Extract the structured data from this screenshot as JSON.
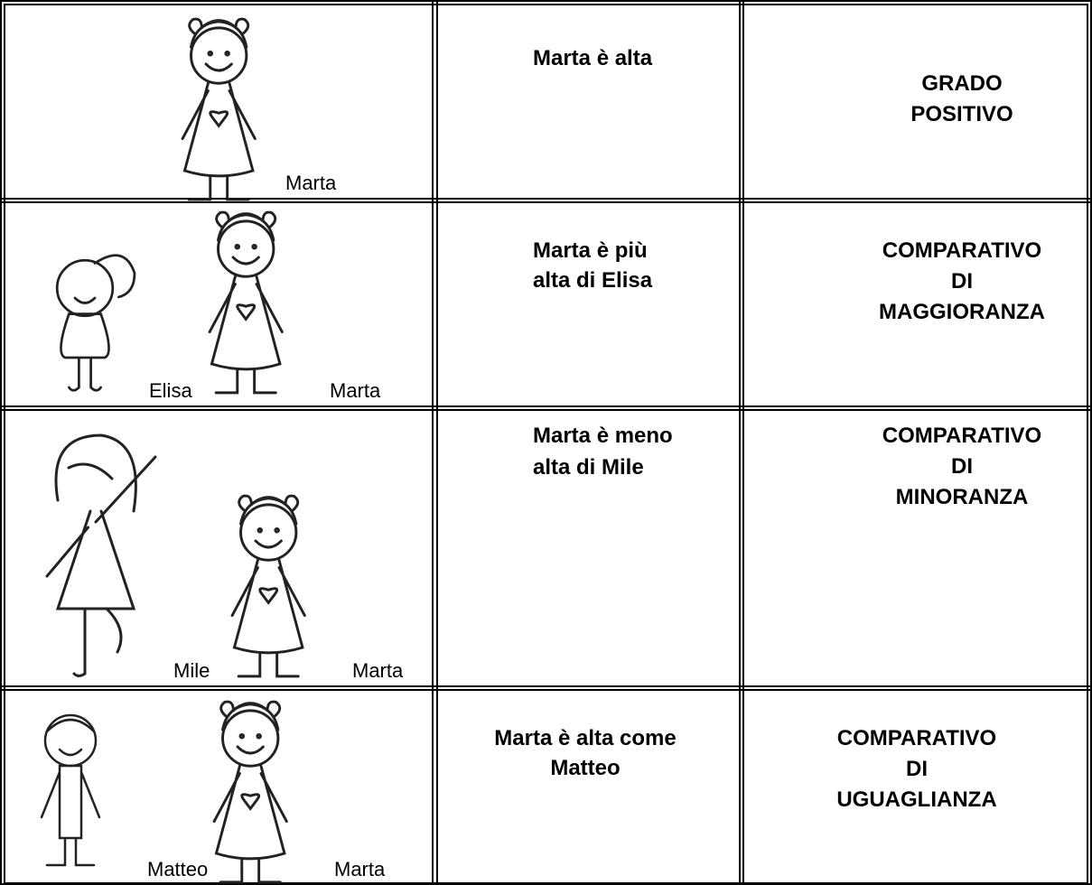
{
  "table": {
    "rows": [
      {
        "figures": [
          "Marta"
        ],
        "sentence": [
          "Marta è  alta"
        ],
        "degree": [
          "GRADO",
          "POSITIVO"
        ]
      },
      {
        "figures": [
          "Elisa",
          "Marta"
        ],
        "sentence": [
          "Marta è  più",
          "alta di Elisa"
        ],
        "degree": [
          "COMPARATIVO",
          "DI",
          "MAGGIORANZA"
        ]
      },
      {
        "figures": [
          "Mile",
          "Marta"
        ],
        "sentence": [
          "Marta è  meno",
          "alta di Mile"
        ],
        "degree": [
          "COMPARATIVO",
          "DI",
          "MINORANZA"
        ]
      },
      {
        "figures": [
          "Matteo",
          "Marta"
        ],
        "sentence": [
          "Marta è alta come",
          "Matteo"
        ],
        "degree": [
          "COMPARATIVO",
          "DI",
          "UGUAGLIANZA"
        ]
      }
    ]
  }
}
